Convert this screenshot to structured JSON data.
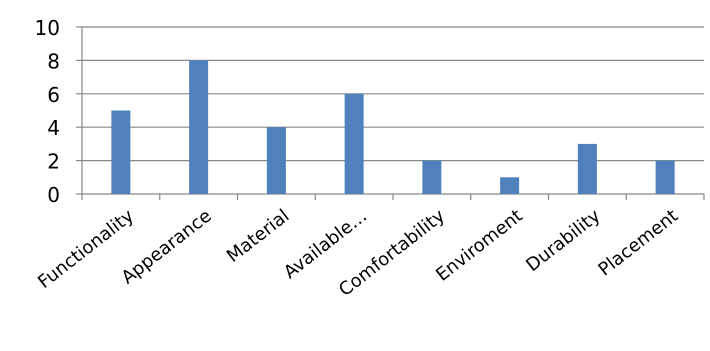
{
  "chart_data": {
    "type": "bar",
    "categories": [
      "Functionality",
      "Appearance",
      "Material",
      "Available…",
      "Comfortability",
      "Enviroment",
      "Durability",
      "Placement"
    ],
    "values": [
      5,
      8,
      4,
      6,
      2,
      1,
      3,
      2
    ],
    "title": "",
    "xlabel": "",
    "ylabel": "",
    "ylim": [
      0,
      10
    ],
    "yticks": [
      0,
      2,
      4,
      6,
      8,
      10
    ],
    "grid": true,
    "legend": "none",
    "colors": {
      "bar": "#4f81bd",
      "grid": "#888888",
      "axis": "#888888"
    }
  }
}
